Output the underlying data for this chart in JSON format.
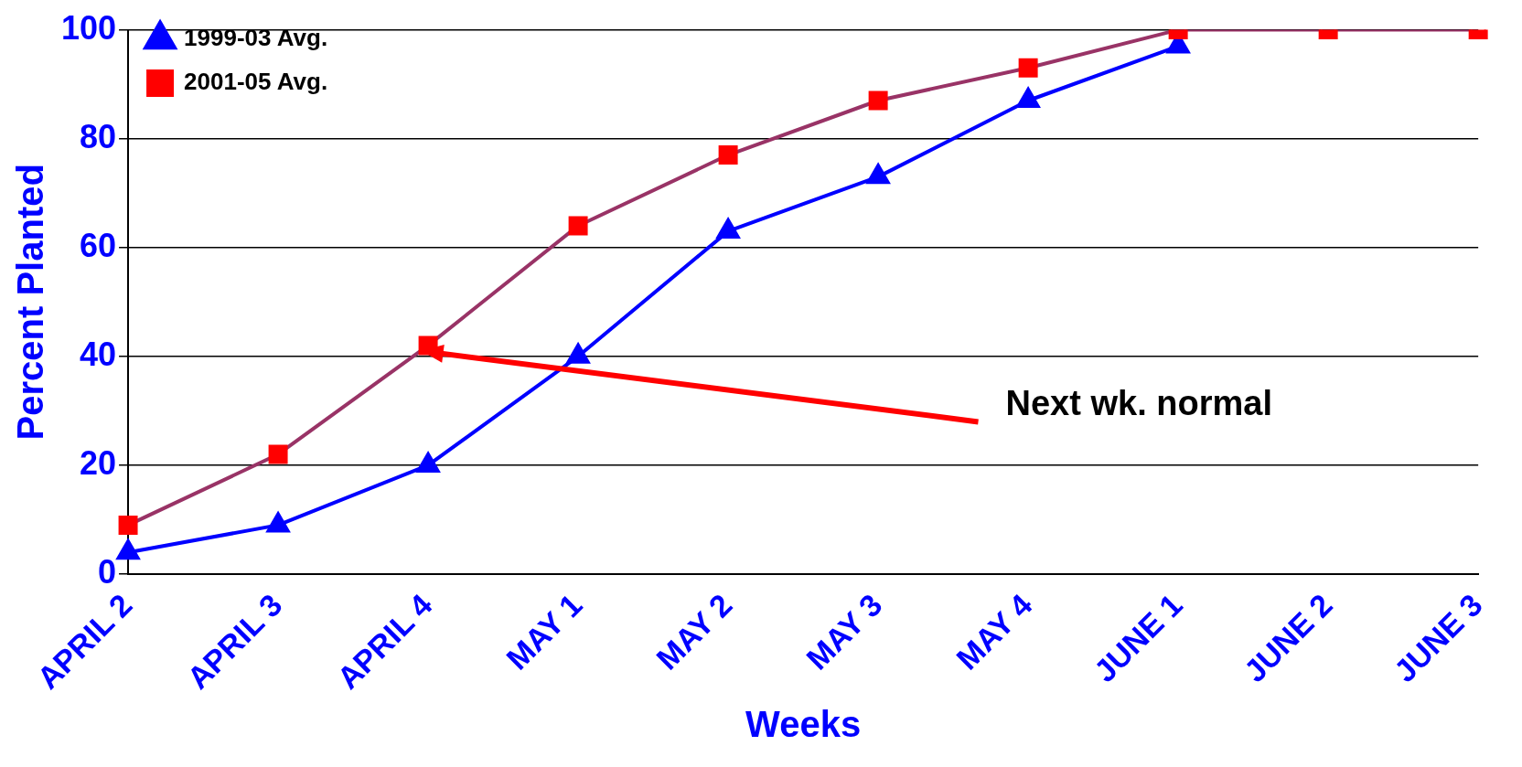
{
  "chart_data": {
    "type": "line",
    "xlabel": "Weeks",
    "ylabel": "Percent Planted",
    "categories": [
      "APRIL 2",
      "APRIL 3",
      "APRIL 4",
      "MAY 1",
      "MAY 2",
      "MAY 3",
      "MAY 4",
      "JUNE 1",
      "JUNE 2",
      "JUNE 3"
    ],
    "series": [
      {
        "name": "1999-03 Avg.",
        "color": "#0000ff",
        "marker": "triangle",
        "values": [
          4,
          9,
          20,
          40,
          63,
          73,
          87,
          97,
          null,
          null
        ]
      },
      {
        "name": "2001-05 Avg.",
        "color": "#993366",
        "colors": [
          "#ff0000",
          "#ff0000",
          "#ff0000",
          "#ff0000",
          "#ff0000",
          "#ff0000",
          "#ff0000",
          "#ff0000",
          "#ff0000",
          "#ff0000"
        ],
        "marker": "square",
        "values": [
          9,
          22,
          42,
          64,
          77,
          87,
          93,
          100,
          100,
          100
        ]
      }
    ],
    "ylim": [
      0,
      100
    ],
    "yticks": [
      0,
      20,
      40,
      60,
      80,
      100
    ],
    "grid": "y",
    "legend": "top left",
    "annotations": [
      "Next wk. normal"
    ]
  }
}
